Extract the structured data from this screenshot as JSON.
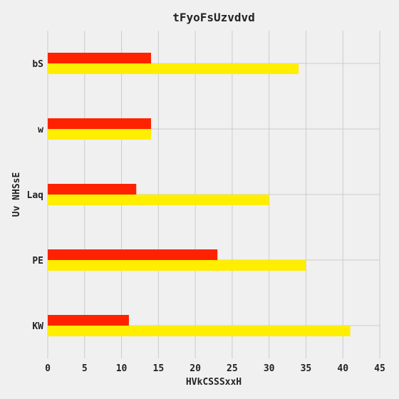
{
  "chart_data": {
    "type": "bar",
    "orientation": "horizontal",
    "title": "tFyoFsUzvdvd",
    "xlabel": "HVkCSSSxxH",
    "ylabel": "Uv NHSsE",
    "categories": [
      "KW",
      "PE",
      "Laq",
      "w",
      "bS"
    ],
    "series": [
      {
        "color": "#ff2200",
        "values": [
          11,
          23,
          12,
          14,
          14
        ]
      },
      {
        "color": "#ffee00",
        "values": [
          41,
          35,
          30,
          14,
          34
        ]
      }
    ],
    "xlim": [
      0,
      45
    ],
    "xticks": [
      0,
      5,
      10,
      15,
      20,
      25,
      30,
      35,
      40,
      45
    ],
    "grid": true,
    "legend": "none"
  },
  "colors": {
    "background": "#f0f0f0",
    "grid": "#cbcbcb",
    "text": "#222222"
  }
}
